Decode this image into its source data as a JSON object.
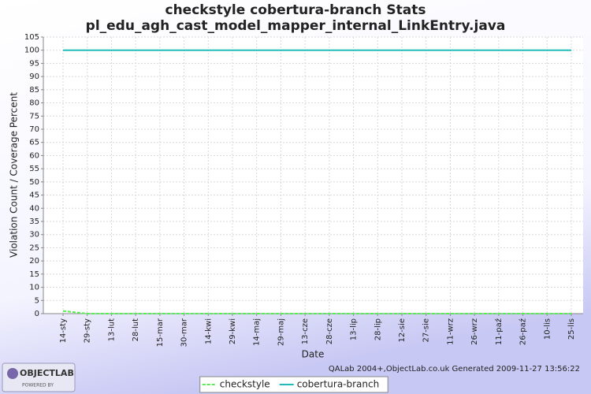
{
  "chart_data": {
    "type": "line",
    "title": "checkstyle cobertura-branch  Stats",
    "subtitle": "pl_edu_agh_cast_model_mapper_internal_LinkEntry.java",
    "x_label": "Date",
    "y_label": "Violation Count / Coverage Percent",
    "categories": [
      "14-sty",
      "29-sty",
      "13-lut",
      "28-lut",
      "15-mar",
      "30-mar",
      "14-kwi",
      "29-kwi",
      "14-maj",
      "29-maj",
      "13-cze",
      "28-cze",
      "13-lip",
      "28-lip",
      "12-sie",
      "27-sie",
      "11-wrz",
      "26-wrz",
      "11-paź",
      "26-paź",
      "10-lis",
      "25-lis"
    ],
    "series": [
      {
        "name": "checkstyle",
        "color": "#55ee55",
        "dashed": true,
        "values": [
          1,
          0,
          0,
          0,
          0,
          0,
          0,
          0,
          0,
          0,
          0,
          0,
          0,
          0,
          0,
          0,
          0,
          0,
          0,
          0,
          0,
          0
        ]
      },
      {
        "name": "cobertura-branch",
        "color": "#22bbbb",
        "dashed": false,
        "values": [
          100,
          100,
          100,
          100,
          100,
          100,
          100,
          100,
          100,
          100,
          100,
          100,
          100,
          100,
          100,
          100,
          100,
          100,
          100,
          100,
          100,
          100
        ]
      }
    ],
    "ylim": [
      0,
      105
    ],
    "yticks": [
      0,
      5,
      10,
      15,
      20,
      25,
      30,
      35,
      40,
      45,
      50,
      55,
      60,
      65,
      70,
      75,
      80,
      85,
      90,
      95,
      100,
      105
    ],
    "grid": true,
    "legend": "bottom",
    "footer": "QALab 2004+,ObjectLab.co.uk Generated 2009-11-27 13:56:22",
    "logo": {
      "name": "OBJECTLAB",
      "tagline": "POWERED BY"
    }
  }
}
